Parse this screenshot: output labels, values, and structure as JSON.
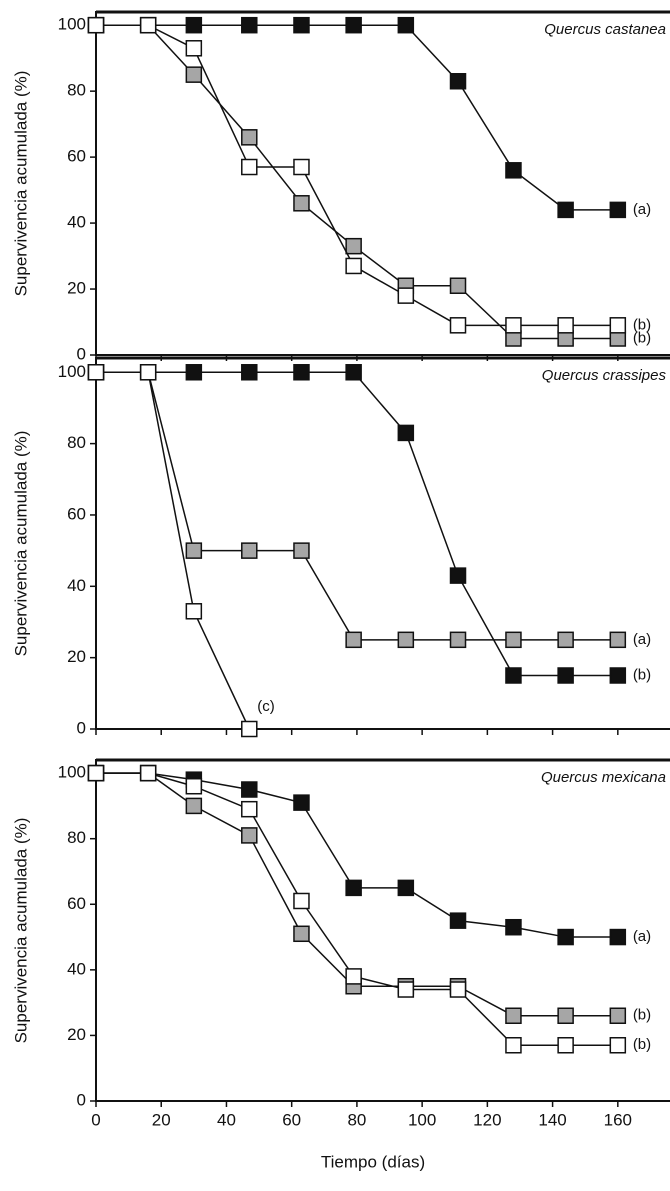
{
  "chart_data": [
    {
      "type": "line",
      "title": "Quercus castanea",
      "ylabel": "Supervivencia acumulada (%)",
      "x": [
        0,
        16,
        30,
        47,
        63,
        79,
        95,
        111,
        128,
        144,
        160
      ],
      "series": [
        {
          "color": "#111111",
          "values": [
            100,
            100,
            100,
            100,
            100,
            100,
            100,
            83,
            56,
            44,
            44
          ],
          "end_label": "(a)"
        },
        {
          "color": "#a6a6a6",
          "values": [
            100,
            100,
            85,
            66,
            46,
            33,
            21,
            21,
            5,
            5,
            5
          ],
          "end_label": "(b)"
        },
        {
          "color": "#ffffff",
          "values": [
            100,
            100,
            93,
            57,
            57,
            27,
            18,
            9,
            9,
            9,
            9
          ],
          "end_label": "(b)"
        }
      ],
      "xlim": [
        0,
        176
      ],
      "xticks": [
        0,
        20,
        40,
        60,
        80,
        100,
        120,
        140,
        160
      ],
      "ylim": [
        0,
        104
      ],
      "yticks": [
        0,
        20,
        40,
        60,
        80,
        100
      ]
    },
    {
      "type": "line",
      "title": "Quercus crassipes",
      "ylabel": "Supervivencia acumulada (%)",
      "x": [
        0,
        16,
        30,
        47,
        63,
        79,
        95,
        111,
        128,
        144,
        160
      ],
      "series": [
        {
          "color": "#111111",
          "values": [
            100,
            100,
            100,
            100,
            100,
            100,
            83,
            43,
            15,
            15,
            15
          ],
          "end_label": "(b)"
        },
        {
          "color": "#a6a6a6",
          "values": [
            100,
            100,
            50,
            50,
            50,
            25,
            25,
            25,
            25,
            25,
            25
          ],
          "end_label": "(a)"
        },
        {
          "color": "#ffffff",
          "values": [
            100,
            100,
            33,
            0,
            null,
            null,
            null,
            null,
            null,
            null,
            null
          ],
          "end_label": "(c)"
        }
      ],
      "xlim": [
        0,
        176
      ],
      "xticks": [
        0,
        20,
        40,
        60,
        80,
        100,
        120,
        140,
        160
      ],
      "ylim": [
        0,
        104
      ],
      "yticks": [
        0,
        20,
        40,
        60,
        80,
        100
      ]
    },
    {
      "type": "line",
      "title": "Quercus mexicana",
      "ylabel": "Supervivencia acumulada (%)",
      "xlabel": "Tiempo (días)",
      "x": [
        0,
        16,
        30,
        47,
        63,
        79,
        95,
        111,
        128,
        144,
        160
      ],
      "series": [
        {
          "color": "#111111",
          "values": [
            100,
            100,
            98,
            95,
            91,
            65,
            65,
            55,
            53,
            50,
            50
          ],
          "end_label": "(a)"
        },
        {
          "color": "#a6a6a6",
          "values": [
            100,
            100,
            90,
            81,
            51,
            35,
            35,
            35,
            26,
            26,
            26
          ],
          "end_label": "(b)"
        },
        {
          "color": "#ffffff",
          "values": [
            100,
            100,
            96,
            89,
            61,
            38,
            34,
            34,
            17,
            17,
            17
          ],
          "end_label": "(b)"
        }
      ],
      "xlim": [
        0,
        176
      ],
      "xticks": [
        0,
        20,
        40,
        60,
        80,
        100,
        120,
        140,
        160
      ],
      "ylim": [
        0,
        104
      ],
      "yticks": [
        0,
        20,
        40,
        60,
        80,
        100
      ]
    }
  ]
}
